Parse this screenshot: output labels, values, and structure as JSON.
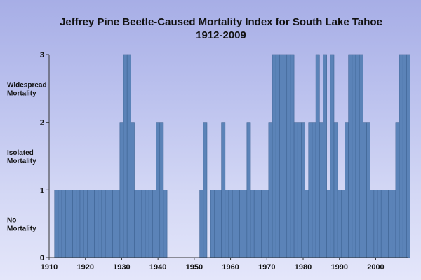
{
  "chart_data": {
    "type": "bar",
    "title": "Jeffrey Pine Beetle-Caused Mortality Index for South Lake Tahoe",
    "subtitle": "1912-2009",
    "xlabel": "",
    "ylabel": "",
    "xlim": [
      1910,
      2009
    ],
    "ylim": [
      0,
      3
    ],
    "x_ticks": [
      "1910",
      "1920",
      "1930",
      "1940",
      "1950",
      "1960",
      "1970",
      "1980",
      "1990",
      "2000"
    ],
    "y_ticks": [
      "0",
      "1",
      "2",
      "3"
    ],
    "y_category_labels": [
      {
        "lines": [
          "No",
          "Mortality"
        ],
        "value": 0.5
      },
      {
        "lines": [
          "Isolated",
          "Mortality"
        ],
        "value": 1.5
      },
      {
        "lines": [
          "Widespread",
          "Mortality"
        ],
        "value": 2.5
      }
    ],
    "grid": false,
    "bar_color": "#5b83b8",
    "bar_edge_color": "#3f6494",
    "years": [
      1912,
      1913,
      1914,
      1915,
      1916,
      1917,
      1918,
      1919,
      1920,
      1921,
      1922,
      1923,
      1924,
      1925,
      1926,
      1927,
      1928,
      1929,
      1930,
      1931,
      1932,
      1933,
      1934,
      1935,
      1936,
      1937,
      1938,
      1939,
      1940,
      1941,
      1942,
      1943,
      1944,
      1945,
      1946,
      1947,
      1948,
      1949,
      1950,
      1951,
      1952,
      1953,
      1954,
      1955,
      1956,
      1957,
      1958,
      1959,
      1960,
      1961,
      1962,
      1963,
      1964,
      1965,
      1966,
      1967,
      1968,
      1969,
      1970,
      1971,
      1972,
      1973,
      1974,
      1975,
      1976,
      1977,
      1978,
      1979,
      1980,
      1981,
      1982,
      1983,
      1984,
      1985,
      1986,
      1987,
      1988,
      1989,
      1990,
      1991,
      1992,
      1993,
      1994,
      1995,
      1996,
      1997,
      1998,
      1999,
      2000,
      2001,
      2002,
      2003,
      2004,
      2005,
      2006,
      2007,
      2008,
      2009
    ],
    "values": [
      1,
      1,
      1,
      1,
      1,
      1,
      1,
      1,
      1,
      1,
      1,
      1,
      1,
      1,
      1,
      1,
      1,
      1,
      2,
      3,
      3,
      2,
      1,
      1,
      1,
      1,
      1,
      1,
      2,
      2,
      1,
      0,
      0,
      0,
      0,
      0,
      0,
      0,
      0,
      0,
      1,
      2,
      0,
      1,
      1,
      1,
      2,
      1,
      1,
      1,
      1,
      1,
      1,
      2,
      1,
      1,
      1,
      1,
      1,
      2,
      3,
      3,
      3,
      3,
      3,
      3,
      2,
      2,
      2,
      1,
      2,
      2,
      3,
      2,
      3,
      1,
      3,
      2,
      1,
      1,
      2,
      3,
      3,
      3,
      3,
      2,
      2,
      1,
      1,
      1,
      1,
      1,
      1,
      1,
      2,
      3,
      3,
      3
    ]
  }
}
